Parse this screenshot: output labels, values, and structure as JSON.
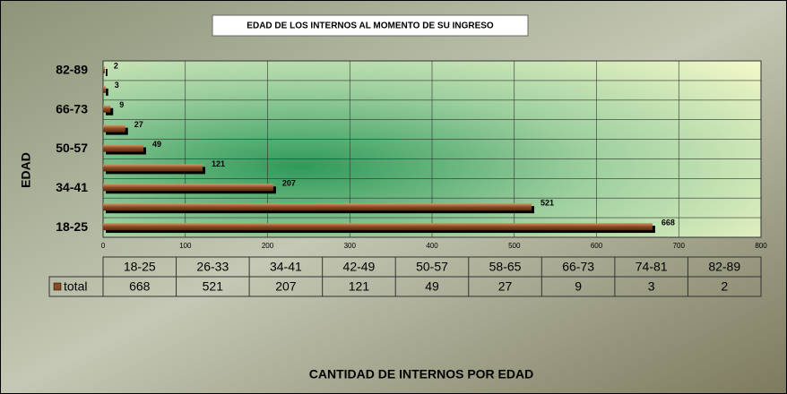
{
  "chart_data": {
    "type": "bar",
    "orientation": "horizontal",
    "title": "EDAD DE LOS INTERNOS AL MOMENTO DE SU INGRESO",
    "y_label": "EDAD",
    "x_label": "CANTIDAD DE INTERNOS POR EDAD",
    "categories": [
      "18-25",
      "26-33",
      "34-41",
      "42-49",
      "50-57",
      "58-65",
      "66-73",
      "74-81",
      "82-89"
    ],
    "series": [
      {
        "name": "total",
        "color": "#8b4a22",
        "values": [
          668,
          521,
          207,
          121,
          49,
          27,
          9,
          3,
          2
        ]
      }
    ],
    "xlim": [
      0,
      800
    ],
    "xticks": [
      0,
      100,
      200,
      300,
      400,
      500,
      600,
      700,
      800
    ],
    "grid": true,
    "data_table": true
  }
}
